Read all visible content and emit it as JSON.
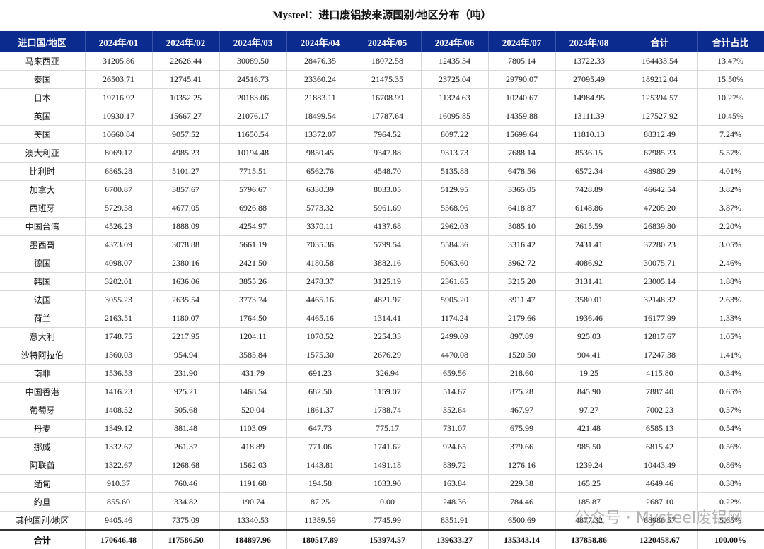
{
  "title": "Mysteel：进口废铝按来源国别/地区分布（吨）",
  "table": {
    "header": [
      "进口国/地区",
      "2024年/01",
      "2024年/02",
      "2024年/03",
      "2024年/04",
      "2024年/05",
      "2024年/06",
      "2024年/07",
      "2024年/08",
      "合计",
      "合计占比"
    ],
    "rows": [
      [
        "马来西亚",
        "31205.86",
        "22626.44",
        "30089.50",
        "28476.35",
        "18072.58",
        "12435.34",
        "7805.14",
        "13722.33",
        "164433.54",
        "13.47%"
      ],
      [
        "泰国",
        "26503.71",
        "12745.41",
        "24516.73",
        "23360.24",
        "21475.35",
        "23725.04",
        "29790.07",
        "27095.49",
        "189212.04",
        "15.50%"
      ],
      [
        "日本",
        "19716.92",
        "10352.25",
        "20183.06",
        "21883.11",
        "16708.99",
        "11324.63",
        "10240.67",
        "14984.95",
        "125394.57",
        "10.27%"
      ],
      [
        "英国",
        "10930.17",
        "15667.27",
        "21076.17",
        "18499.54",
        "17787.64",
        "16095.85",
        "14359.88",
        "13111.39",
        "127527.92",
        "10.45%"
      ],
      [
        "美国",
        "10660.84",
        "9057.52",
        "11650.54",
        "13372.07",
        "7964.52",
        "8097.22",
        "15699.64",
        "11810.13",
        "88312.49",
        "7.24%"
      ],
      [
        "澳大利亚",
        "8069.17",
        "4985.23",
        "10194.48",
        "9850.45",
        "9347.88",
        "9313.73",
        "7688.14",
        "8536.15",
        "67985.23",
        "5.57%"
      ],
      [
        "比利时",
        "6865.28",
        "5101.27",
        "7715.51",
        "6562.76",
        "4548.70",
        "5135.88",
        "6478.56",
        "6572.34",
        "48980.29",
        "4.01%"
      ],
      [
        "加拿大",
        "6700.87",
        "3857.67",
        "5796.67",
        "6330.39",
        "8033.05",
        "5129.95",
        "3365.05",
        "7428.89",
        "46642.54",
        "3.82%"
      ],
      [
        "西班牙",
        "5729.58",
        "4677.05",
        "6926.88",
        "5773.32",
        "5961.69",
        "5568.96",
        "6418.87",
        "6148.86",
        "47205.20",
        "3.87%"
      ],
      [
        "中国台湾",
        "4526.23",
        "1888.09",
        "4254.97",
        "3370.11",
        "4137.68",
        "2962.03",
        "3085.10",
        "2615.59",
        "26839.80",
        "2.20%"
      ],
      [
        "墨西哥",
        "4373.09",
        "3078.88",
        "5661.19",
        "7035.36",
        "5799.54",
        "5584.36",
        "3316.42",
        "2431.41",
        "37280.23",
        "3.05%"
      ],
      [
        "德国",
        "4098.07",
        "2380.16",
        "2421.50",
        "4180.58",
        "3882.16",
        "5063.60",
        "3962.72",
        "4086.92",
        "30075.71",
        "2.46%"
      ],
      [
        "韩国",
        "3202.01",
        "1636.06",
        "3855.26",
        "2478.37",
        "3125.19",
        "2361.65",
        "3215.20",
        "3131.41",
        "23005.14",
        "1.88%"
      ],
      [
        "法国",
        "3055.23",
        "2635.54",
        "3773.74",
        "4465.16",
        "4821.97",
        "5905.20",
        "3911.47",
        "3580.01",
        "32148.32",
        "2.63%"
      ],
      [
        "荷兰",
        "2163.51",
        "1180.07",
        "1764.50",
        "4465.16",
        "1314.41",
        "1174.24",
        "2179.66",
        "1936.46",
        "16177.99",
        "1.33%"
      ],
      [
        "意大利",
        "1748.75",
        "2217.95",
        "1204.11",
        "1070.52",
        "2254.33",
        "2499.09",
        "897.89",
        "925.03",
        "12817.67",
        "1.05%"
      ],
      [
        "沙特阿拉伯",
        "1560.03",
        "954.94",
        "3585.84",
        "1575.30",
        "2676.29",
        "4470.08",
        "1520.50",
        "904.41",
        "17247.38",
        "1.41%"
      ],
      [
        "南非",
        "1536.53",
        "231.90",
        "431.79",
        "691.23",
        "326.94",
        "659.56",
        "218.60",
        "19.25",
        "4115.80",
        "0.34%"
      ],
      [
        "中国香港",
        "1416.23",
        "925.21",
        "1468.54",
        "682.50",
        "1159.07",
        "514.67",
        "875.28",
        "845.90",
        "7887.40",
        "0.65%"
      ],
      [
        "葡萄牙",
        "1408.52",
        "505.68",
        "520.04",
        "1861.37",
        "1788.74",
        "352.64",
        "467.97",
        "97.27",
        "7002.23",
        "0.57%"
      ],
      [
        "丹麦",
        "1349.12",
        "881.48",
        "1103.09",
        "647.73",
        "775.17",
        "731.07",
        "675.99",
        "421.48",
        "6585.13",
        "0.54%"
      ],
      [
        "挪威",
        "1332.67",
        "261.37",
        "418.89",
        "771.06",
        "1741.62",
        "924.65",
        "379.66",
        "985.50",
        "6815.42",
        "0.56%"
      ],
      [
        "阿联酋",
        "1322.67",
        "1268.68",
        "1562.03",
        "1443.81",
        "1491.18",
        "839.72",
        "1276.16",
        "1239.24",
        "10443.49",
        "0.86%"
      ],
      [
        "缅甸",
        "910.37",
        "760.46",
        "1191.68",
        "194.58",
        "1033.90",
        "163.84",
        "229.38",
        "165.25",
        "4649.46",
        "0.38%"
      ],
      [
        "约旦",
        "855.60",
        "334.82",
        "190.74",
        "87.25",
        "0.00",
        "248.36",
        "784.46",
        "185.87",
        "2687.10",
        "0.22%"
      ],
      [
        "其他国别/地区",
        "9405.46",
        "7375.09",
        "13340.53",
        "11389.59",
        "7745.99",
        "8351.91",
        "6500.69",
        "4877.32",
        "68986.57",
        "5.65%"
      ]
    ],
    "total": [
      "合计",
      "170646.48",
      "117586.50",
      "184897.96",
      "180517.89",
      "153974.57",
      "139633.27",
      "135343.14",
      "137858.86",
      "1220458.67",
      "100.00%"
    ]
  },
  "watermark": "公众号 · Mysteel废铝网"
}
